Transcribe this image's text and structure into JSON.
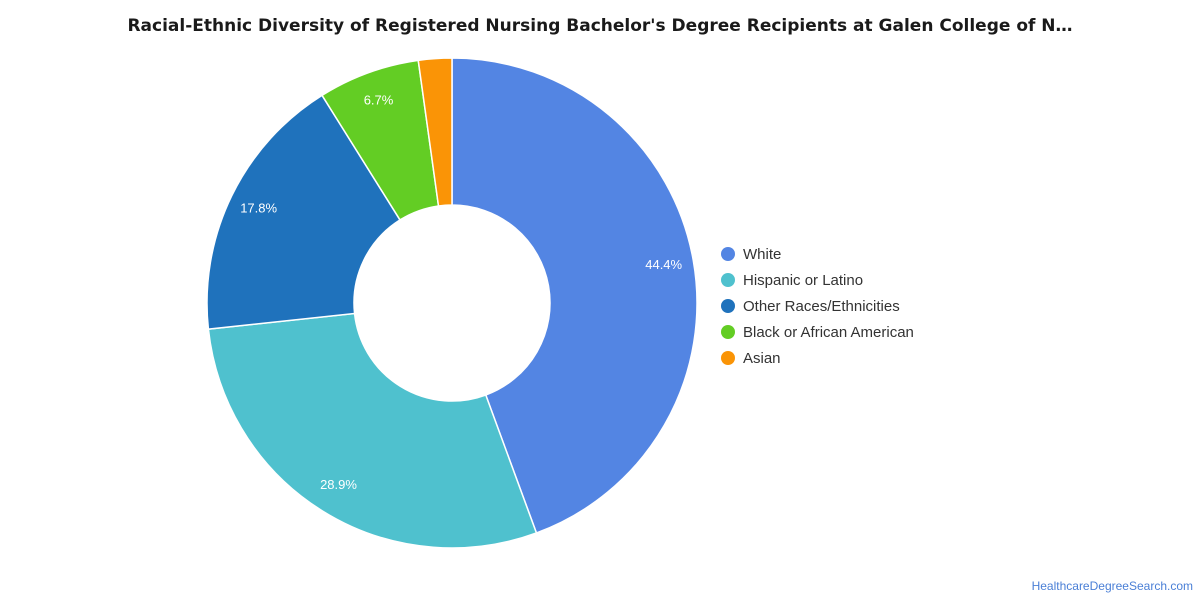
{
  "chart_data": {
    "type": "pie",
    "variant": "donut",
    "title": "Racial-Ethnic Diversity of Registered Nursing Bachelor's Degree Recipients at Galen College of N…",
    "categories": [
      "White",
      "Hispanic or Latino",
      "Other Races/Ethnicities",
      "Black or African American",
      "Asian"
    ],
    "values": [
      44.4,
      28.9,
      17.8,
      6.7,
      2.2
    ],
    "value_labels": [
      "44.4%",
      "28.9%",
      "17.8%",
      "6.7%",
      ""
    ],
    "colors": [
      "#5385e3",
      "#4fc1ce",
      "#1f72bc",
      "#63cd24",
      "#fa9406"
    ],
    "legend_position": "right"
  },
  "source": "HealthcareDegreeSearch.com"
}
